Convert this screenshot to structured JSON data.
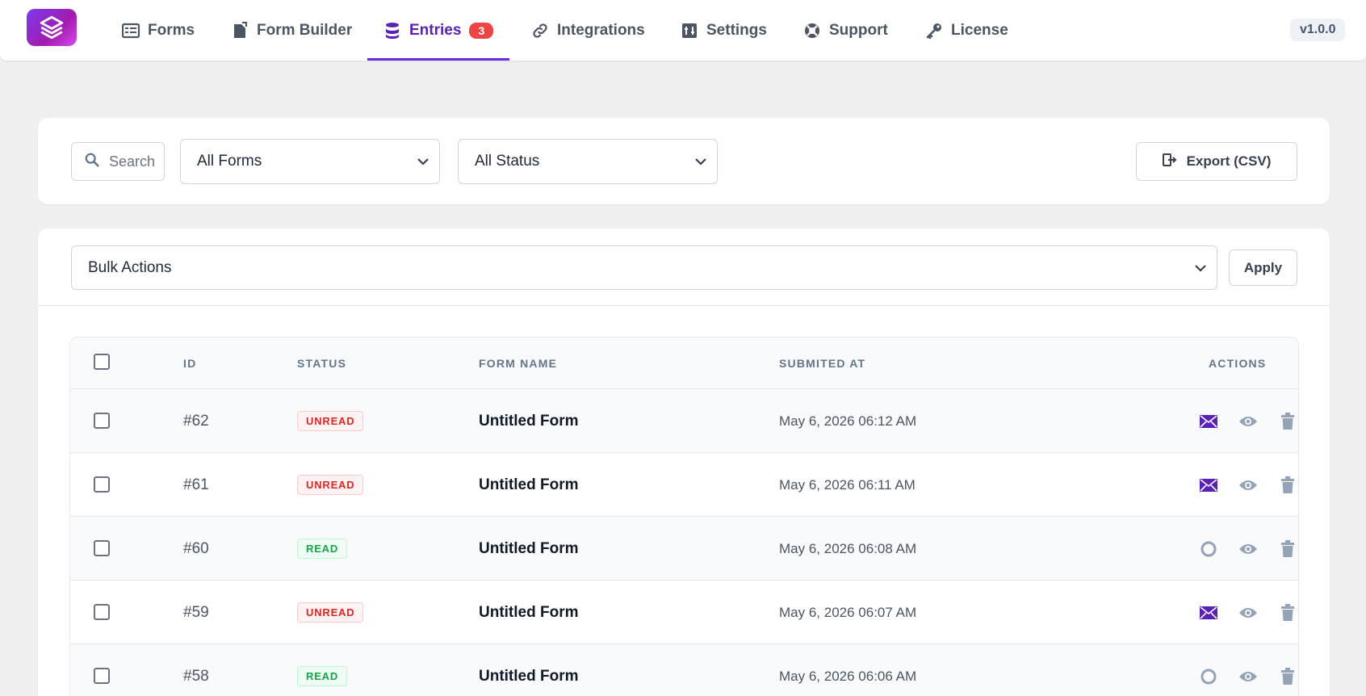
{
  "nav": {
    "items": [
      {
        "label": "Forms",
        "icon": "forms-icon"
      },
      {
        "label": "Form Builder",
        "icon": "file-icon"
      },
      {
        "label": "Entries",
        "icon": "database-icon",
        "badge": "3",
        "active": true
      },
      {
        "label": "Integrations",
        "icon": "link-icon"
      },
      {
        "label": "Settings",
        "icon": "sliders-icon"
      },
      {
        "label": "Support",
        "icon": "lifebuoy-icon"
      },
      {
        "label": "License",
        "icon": "key-icon"
      }
    ],
    "version": "v1.0.0"
  },
  "filters": {
    "search_placeholder": "Search",
    "forms_select": "All Forms",
    "status_select": "All Status",
    "export_label": "Export (CSV)"
  },
  "bulk": {
    "select_label": "Bulk Actions",
    "apply_label": "Apply"
  },
  "table": {
    "headers": {
      "id": "ID",
      "status": "STATUS",
      "form_name": "FORM NAME",
      "submitted_at": "SUBMITED AT",
      "actions": "ACTIONS"
    },
    "rows": [
      {
        "id": "#62",
        "status": "UNREAD",
        "form_name": "Untitled Form",
        "submitted_at": "May 6, 2026 06:12 AM"
      },
      {
        "id": "#61",
        "status": "UNREAD",
        "form_name": "Untitled Form",
        "submitted_at": "May 6, 2026 06:11 AM"
      },
      {
        "id": "#60",
        "status": "READ",
        "form_name": "Untitled Form",
        "submitted_at": "May 6, 2026 06:08 AM"
      },
      {
        "id": "#59",
        "status": "UNREAD",
        "form_name": "Untitled Form",
        "submitted_at": "May 6, 2026 06:07 AM"
      },
      {
        "id": "#58",
        "status": "READ",
        "form_name": "Untitled Form",
        "submitted_at": "May 6, 2026 06:06 AM"
      }
    ]
  },
  "colors": {
    "accent": "#5b21b6",
    "unread": "#dc2626",
    "read": "#16a34a",
    "badge": "#ef4444"
  }
}
